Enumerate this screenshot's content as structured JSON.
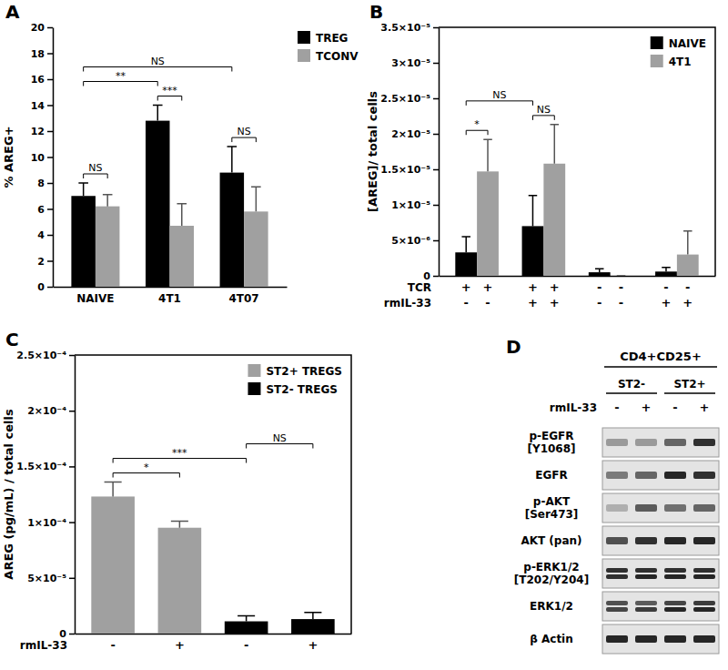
{
  "chart_data": [
    {
      "type": "bar",
      "title": "A",
      "ylabel": "% AREG+",
      "categories": [
        "NAIVE",
        "4T1",
        "4T07"
      ],
      "series": [
        {
          "name": "TREG",
          "color": "#000000",
          "values": [
            7.0,
            12.8,
            8.8
          ],
          "errors": [
            1.0,
            1.2,
            2.0
          ]
        },
        {
          "name": "TCONV",
          "color": "#a0a0a0",
          "values": [
            6.2,
            4.7,
            5.8
          ],
          "errors": [
            0.9,
            1.7,
            1.9
          ]
        }
      ],
      "ylim": [
        0,
        20
      ],
      "yticks": [
        0,
        2,
        4,
        6,
        8,
        10,
        12,
        14,
        16,
        18,
        20
      ],
      "legend": "right",
      "annotations": [
        {
          "text": "NS",
          "from": [
            0,
            0
          ],
          "to": [
            0,
            1
          ]
        },
        {
          "text": "***",
          "from": [
            1,
            0
          ],
          "to": [
            1,
            1
          ]
        },
        {
          "text": "NS",
          "from": [
            2,
            0
          ],
          "to": [
            2,
            1
          ]
        },
        {
          "text": "**",
          "from": [
            0,
            0
          ],
          "to": [
            1,
            0
          ]
        },
        {
          "text": "NS",
          "from": [
            0,
            0
          ],
          "to": [
            2,
            0
          ]
        }
      ]
    },
    {
      "type": "bar",
      "title": "B",
      "ylabel": "[AREG]/ total cells",
      "categories": [
        null,
        null,
        null,
        null
      ],
      "series": [
        {
          "name": "NAIVE",
          "color": "#000000",
          "values": [
            3.3e-06,
            7e-06,
            5e-07,
            6e-07
          ],
          "errors": [
            2.2e-06,
            4.3e-06,
            5e-07,
            6e-07
          ]
        },
        {
          "name": "4T1",
          "color": "#a0a0a0",
          "values": [
            1.47e-05,
            1.58e-05,
            0,
            3e-06
          ],
          "errors": [
            4.5e-06,
            5.5e-06,
            0,
            3.3e-06
          ]
        }
      ],
      "ylim": [
        0,
        3.5e-05
      ],
      "yticks": [
        0,
        {
          "value": 5e-06,
          "label": "5×10⁻⁶"
        },
        {
          "value": 1e-05,
          "label": "1×10⁻⁵"
        },
        {
          "value": 1.5e-05,
          "label": "1.5×10⁻⁵"
        },
        {
          "value": 2e-05,
          "label": "2×10⁻⁵"
        },
        {
          "value": 2.5e-05,
          "label": "2.5×10⁻⁵"
        },
        {
          "value": 3e-05,
          "label": "3×10⁻⁵"
        },
        {
          "value": 3.5e-05,
          "label": "3.5×10⁻⁵"
        }
      ],
      "legend": "upper right",
      "annotations": [
        {
          "text": "*",
          "from": [
            0,
            0
          ],
          "to": [
            0,
            1
          ]
        },
        {
          "text": "NS",
          "from": [
            1,
            0
          ],
          "to": [
            1,
            1
          ]
        },
        {
          "text": "NS",
          "from": [
            0,
            0
          ],
          "to": [
            1,
            0
          ]
        }
      ],
      "x_rows": [
        {
          "label": "TCR",
          "values": [
            "+",
            "+",
            "+",
            "+",
            "-",
            "-",
            "-",
            "-"
          ]
        },
        {
          "label": "rmIL-33",
          "values": [
            "-",
            "-",
            "+",
            "+",
            "-",
            "-",
            "+",
            "+"
          ]
        }
      ]
    },
    {
      "type": "bar",
      "title": "C",
      "ylabel": "AREG (pg/mL) / total cells",
      "categories": [
        null,
        null,
        null,
        null
      ],
      "series": [
        {
          "name": "ST2+ TREGS",
          "color": "#a0a0a0",
          "values": [
            0.000123,
            9.5e-05,
            null,
            null
          ],
          "errors": [
            1.3e-05,
            6e-06,
            null,
            null
          ]
        },
        {
          "name": "ST2- TREGS",
          "color": "#000000",
          "values": [
            null,
            null,
            1.1e-05,
            1.3e-05
          ],
          "errors": [
            null,
            null,
            5e-06,
            6e-06
          ]
        }
      ],
      "ylim": [
        0,
        0.00025
      ],
      "yticks": [
        0,
        {
          "value": 5e-05,
          "label": "5×10⁻⁵"
        },
        {
          "value": 0.0001,
          "label": "1×10⁻⁴"
        },
        {
          "value": 0.00015,
          "label": "1.5×10⁻⁴"
        },
        {
          "value": 0.0002,
          "label": "2×10⁻⁴"
        },
        {
          "value": 0.00025,
          "label": "2.5×10⁻⁴"
        }
      ],
      "legend": "upper right",
      "annotations": [
        {
          "text": "*",
          "from": [
            0,
            0
          ],
          "to": [
            1,
            0
          ]
        },
        {
          "text": "***",
          "from": [
            0,
            0
          ],
          "to": [
            2,
            1
          ]
        },
        {
          "text": "NS",
          "from": [
            2,
            1
          ],
          "to": [
            3,
            1
          ]
        }
      ],
      "x_rows": [
        {
          "label": "rmIL-33",
          "values": [
            "-",
            "+",
            "-",
            "+"
          ]
        }
      ]
    }
  ],
  "blot": {
    "title": "D",
    "header": "CD4+CD25+",
    "groups": [
      "ST2-",
      "ST2+"
    ],
    "condition": {
      "label": "rmIL-33",
      "values": [
        "-",
        "+",
        "-",
        "+"
      ]
    },
    "rows": [
      {
        "label": [
          "p-EGFR",
          "[Y1068]"
        ],
        "intensities": [
          [
            0.35
          ],
          [
            0.35
          ],
          [
            0.6
          ],
          [
            0.85
          ]
        ]
      },
      {
        "label": [
          "EGFR"
        ],
        "intensities": [
          [
            0.5
          ],
          [
            0.6
          ],
          [
            0.9
          ],
          [
            0.85
          ]
        ]
      },
      {
        "label": [
          "p-AKT",
          "[Ser473]"
        ],
        "intensities": [
          [
            0.25
          ],
          [
            0.65
          ],
          [
            0.55
          ],
          [
            0.6
          ]
        ]
      },
      {
        "label": [
          "AKT (pan)"
        ],
        "intensities": [
          [
            0.7
          ],
          [
            0.85
          ],
          [
            0.9
          ],
          [
            0.9
          ]
        ]
      },
      {
        "label": [
          "p-ERK1/2",
          "[T202/Y204]"
        ],
        "intensities": [
          [
            0.85,
            0.85
          ],
          [
            0.85,
            0.9
          ],
          [
            0.85,
            0.9
          ],
          [
            0.85,
            0.9
          ]
        ]
      },
      {
        "label": [
          "ERK1/2"
        ],
        "intensities": [
          [
            0.7,
            0.75
          ],
          [
            0.65,
            0.8
          ],
          [
            0.75,
            0.9
          ],
          [
            0.8,
            0.9
          ]
        ]
      },
      {
        "label": [
          "β Actin"
        ],
        "intensities": [
          [
            0.9
          ],
          [
            0.9
          ],
          [
            0.9
          ],
          [
            0.9
          ]
        ]
      }
    ]
  }
}
